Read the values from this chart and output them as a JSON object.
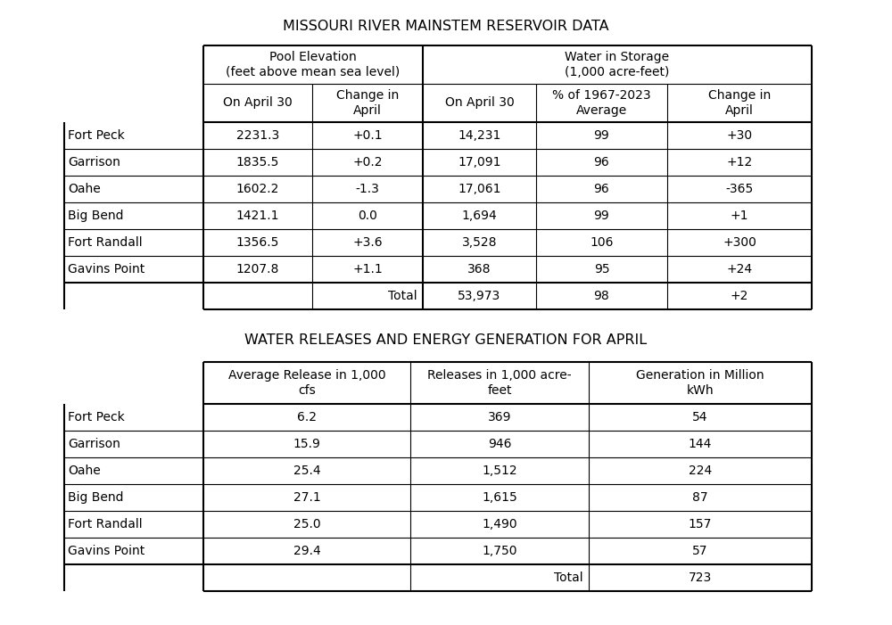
{
  "title1": "MISSOURI RIVER MAINSTEM RESERVOIR DATA",
  "title2": "WATER RELEASES AND ENERGY GENERATION FOR APRIL",
  "table1_rows": [
    [
      "Fort Peck",
      "2231.3",
      "+0.1",
      "14,231",
      "99",
      "+30"
    ],
    [
      "Garrison",
      "1835.5",
      "+0.2",
      "17,091",
      "96",
      "+12"
    ],
    [
      "Oahe",
      "1602.2",
      "-1.3",
      "17,061",
      "96",
      "-365"
    ],
    [
      "Big Bend",
      "1421.1",
      "0.0",
      "1,694",
      "99",
      "+1"
    ],
    [
      "Fort Randall",
      "1356.5",
      "+3.6",
      "3,528",
      "106",
      "+300"
    ],
    [
      "Gavins Point",
      "1207.8",
      "+1.1",
      "368",
      "95",
      "+24"
    ]
  ],
  "table1_total": [
    "53,973",
    "98",
    "+2"
  ],
  "table2_rows": [
    [
      "Fort Peck",
      "6.2",
      "369",
      "54"
    ],
    [
      "Garrison",
      "15.9",
      "946",
      "144"
    ],
    [
      "Oahe",
      "25.4",
      "1,512",
      "224"
    ],
    [
      "Big Bend",
      "27.1",
      "1,615",
      "87"
    ],
    [
      "Fort Randall",
      "25.0",
      "1,490",
      "157"
    ],
    [
      "Gavins Point",
      "29.4",
      "1,750",
      "57"
    ]
  ],
  "table2_total": "723",
  "bg_color": "#ffffff",
  "text_color": "#000000"
}
